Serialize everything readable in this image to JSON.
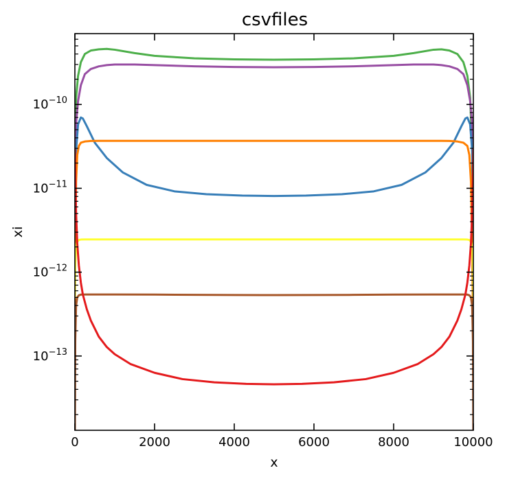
{
  "chart_data": {
    "type": "line",
    "title": "csvfiles",
    "xlabel": "x",
    "ylabel": "xi",
    "xlim": [
      0,
      10000
    ],
    "ylim": [
      1.3e-14,
      7e-10
    ],
    "yscale": "log",
    "grid": false,
    "legend": "none",
    "x_ticks": [
      {
        "value": 0,
        "label": "0"
      },
      {
        "value": 2000,
        "label": "2000"
      },
      {
        "value": 4000,
        "label": "4000"
      },
      {
        "value": 6000,
        "label": "6000"
      },
      {
        "value": 8000,
        "label": "8000"
      },
      {
        "value": 10000,
        "label": "10000"
      }
    ],
    "y_ticks": [
      {
        "value": 1e-13,
        "base": "10",
        "exp": "−13"
      },
      {
        "value": 1e-12,
        "base": "10",
        "exp": "−12"
      },
      {
        "value": 1e-11,
        "base": "10",
        "exp": "−11"
      },
      {
        "value": 1e-10,
        "base": "10",
        "exp": "−10"
      }
    ],
    "series": [
      {
        "color": "#4daf4a",
        "x": [
          0,
          30,
          80,
          150,
          250,
          400,
          600,
          800,
          1000,
          1500,
          2000,
          3000,
          4000,
          5000,
          6000,
          7000,
          8000,
          8500,
          9000,
          9200,
          9400,
          9600,
          9750,
          9850,
          9920,
          9970,
          10000
        ],
        "y": [
          3e-11,
          1.2e-10,
          2.2e-10,
          3.2e-10,
          4e-10,
          4.4e-10,
          4.55e-10,
          4.6e-10,
          4.5e-10,
          4.1e-10,
          3.8e-10,
          3.55e-10,
          3.45e-10,
          3.42e-10,
          3.45e-10,
          3.55e-10,
          3.8e-10,
          4.1e-10,
          4.5e-10,
          4.55e-10,
          4.4e-10,
          4e-10,
          3.2e-10,
          2.2e-10,
          1.2e-10,
          3e-11,
          1e-12
        ]
      },
      {
        "color": "#984ea3",
        "x": [
          0,
          30,
          80,
          150,
          250,
          400,
          600,
          800,
          1000,
          1500,
          2000,
          3000,
          4000,
          5000,
          6000,
          7000,
          8000,
          8500,
          9000,
          9200,
          9400,
          9600,
          9750,
          9850,
          9920,
          9970,
          10000
        ],
        "y": [
          1.5e-11,
          6e-11,
          1.1e-10,
          1.7e-10,
          2.3e-10,
          2.65e-10,
          2.85e-10,
          2.95e-10,
          3e-10,
          3e-10,
          2.95e-10,
          2.85e-10,
          2.8e-10,
          2.78e-10,
          2.8e-10,
          2.85e-10,
          2.95e-10,
          3e-10,
          3e-10,
          2.95e-10,
          2.85e-10,
          2.65e-10,
          2.3e-10,
          1.7e-10,
          1.1e-10,
          6e-11,
          5e-12
        ]
      },
      {
        "color": "#377eb8",
        "x": [
          0,
          30,
          80,
          150,
          200,
          300,
          500,
          800,
          1200,
          1800,
          2500,
          3300,
          4200,
          5000,
          5800,
          6700,
          7500,
          8200,
          8800,
          9200,
          9500,
          9700,
          9800,
          9850,
          9920,
          9970,
          10000
        ],
        "y": [
          6e-12,
          2.8e-11,
          5.8e-11,
          7e-11,
          6.8e-11,
          5.5e-11,
          3.5e-11,
          2.3e-11,
          1.55e-11,
          1.1e-11,
          9.2e-12,
          8.5e-12,
          8.2e-12,
          8.1e-12,
          8.2e-12,
          8.5e-12,
          9.2e-12,
          1.1e-11,
          1.55e-11,
          2.3e-11,
          3.5e-11,
          5.5e-11,
          6.8e-11,
          7e-11,
          5.8e-11,
          2.8e-11,
          6e-12
        ]
      },
      {
        "color": "#ff7f00",
        "x": [
          0,
          10,
          30,
          60,
          100,
          150,
          250,
          400,
          600,
          800,
          1000,
          2000,
          3000,
          4000,
          5000,
          6000,
          7000,
          8000,
          9000,
          9200,
          9400,
          9600,
          9750,
          9850,
          9900,
          9940,
          9970,
          9990,
          10000
        ],
        "y": [
          3e-13,
          2e-12,
          1.2e-11,
          2.5e-11,
          3.2e-11,
          3.5e-11,
          3.62e-11,
          3.67e-11,
          3.68e-11,
          3.68e-11,
          3.68e-11,
          3.68e-11,
          3.68e-11,
          3.68e-11,
          3.68e-11,
          3.68e-11,
          3.68e-11,
          3.68e-11,
          3.68e-11,
          3.68e-11,
          3.67e-11,
          3.62e-11,
          3.5e-11,
          3.2e-11,
          2.5e-11,
          1.2e-11,
          2e-12,
          3e-13,
          1e-13
        ]
      },
      {
        "color": "#ffff33",
        "x": [
          0,
          10,
          30,
          60,
          100,
          150,
          250,
          400,
          1000,
          2000,
          5000,
          8000,
          9000,
          9600,
          9750,
          9850,
          9900,
          9940,
          9970,
          9990,
          10000
        ],
        "y": [
          5e-13,
          1.2e-12,
          2e-12,
          2.3e-12,
          2.42e-12,
          2.45e-12,
          2.46e-12,
          2.46e-12,
          2.46e-12,
          2.46e-12,
          2.46e-12,
          2.46e-12,
          2.46e-12,
          2.46e-12,
          2.46e-12,
          2.45e-12,
          2.42e-12,
          2.3e-12,
          2e-12,
          1.2e-12,
          5e-13
        ]
      },
      {
        "color": "#a65628",
        "x": [
          0,
          10,
          30,
          60,
          100,
          150,
          250,
          500,
          1000,
          2000,
          3000,
          4000,
          5000,
          6000,
          7000,
          8000,
          9000,
          9500,
          9750,
          9850,
          9900,
          9940,
          9970,
          9990,
          10000
        ],
        "y": [
          1.3e-14,
          1.5e-13,
          4e-13,
          5e-13,
          5.3e-13,
          5.4e-13,
          5.42e-13,
          5.42e-13,
          5.42e-13,
          5.4e-13,
          5.36e-13,
          5.34e-13,
          5.33e-13,
          5.34e-13,
          5.36e-13,
          5.4e-13,
          5.42e-13,
          5.42e-13,
          5.42e-13,
          5.4e-13,
          5.3e-13,
          5e-13,
          4e-13,
          1.5e-13,
          1.3e-14
        ]
      },
      {
        "color": "#e41a1c",
        "x": [
          0,
          10,
          30,
          60,
          100,
          150,
          200,
          300,
          400,
          600,
          800,
          1000,
          1400,
          2000,
          2700,
          3500,
          4300,
          5000,
          5700,
          6500,
          7300,
          8000,
          8600,
          9000,
          9200,
          9400,
          9600,
          9700,
          9800,
          9850,
          9900,
          9940,
          9970,
          9990,
          10000
        ],
        "y": [
          3e-11,
          1.5e-11,
          5e-12,
          2.2e-12,
          1.2e-12,
          7.5e-13,
          5.4e-13,
          3.6e-13,
          2.65e-13,
          1.7e-13,
          1.28e-13,
          1.05e-13,
          8e-14,
          6.3e-14,
          5.3e-14,
          4.85e-14,
          4.65e-14,
          4.6e-14,
          4.65e-14,
          4.85e-14,
          5.3e-14,
          6.3e-14,
          8e-14,
          1.05e-13,
          1.28e-13,
          1.7e-13,
          2.65e-13,
          3.6e-13,
          5.4e-13,
          7.5e-13,
          1.2e-12,
          2.2e-12,
          5e-12,
          1.5e-11,
          3e-11
        ]
      }
    ]
  }
}
